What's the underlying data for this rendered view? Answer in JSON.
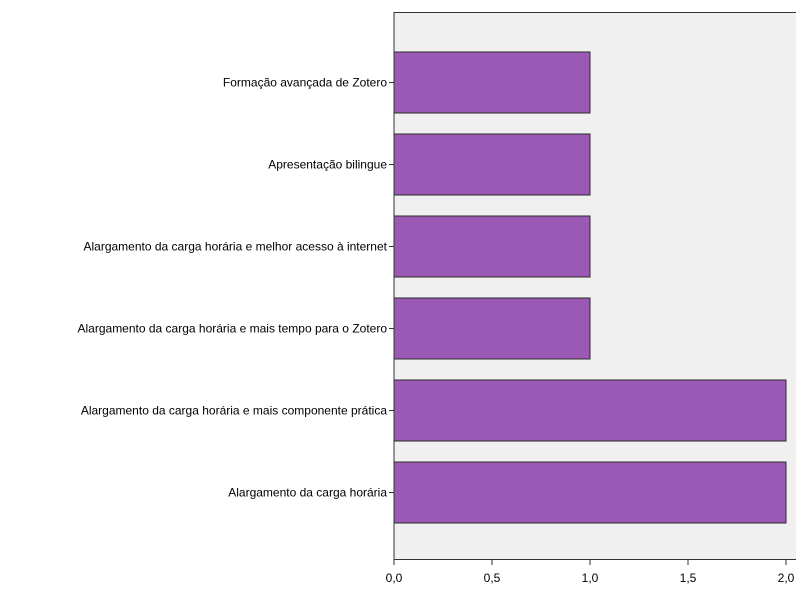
{
  "chart_data": {
    "type": "bar",
    "orientation": "horizontal",
    "categories": [
      "Formação avançada de Zotero",
      "Apresentação bilingue",
      "Alargamento da carga horária e melhor acesso à internet",
      "Alargamento da carga horária e mais tempo para o Zotero",
      "Alargamento da carga horária e mais componente prática",
      "Alargamento da carga horária"
    ],
    "values": [
      1,
      1,
      1,
      1,
      2,
      2
    ],
    "xlim": [
      0,
      2
    ],
    "xticks": [
      0,
      0.5,
      1,
      1.5,
      2
    ],
    "xtick_labels": [
      "0,0",
      "0,5",
      "1,0",
      "1,5",
      "2,0"
    ],
    "title": "",
    "xlabel": "",
    "ylabel": "",
    "grid": false,
    "colors": {
      "bar_fill": "#9b59b6",
      "bar_stroke": "#2b2b2b",
      "plot_background": "#f0f0f0"
    }
  }
}
